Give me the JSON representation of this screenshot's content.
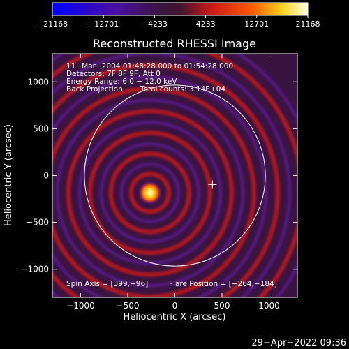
{
  "chart_data": {
    "type": "heatmap",
    "title": "Reconstructed RHESSI Image",
    "xlabel": "Heliocentric X (arcsec)",
    "ylabel": "Heliocentric Y (arcsec)",
    "xlim": [
      -1300,
      1300
    ],
    "ylim": [
      -1300,
      1300
    ],
    "xticks": [
      -1000,
      -500,
      0,
      500,
      1000
    ],
    "yticks": [
      -1000,
      -500,
      0,
      500,
      1000
    ],
    "xtick_labels": [
      "−1000",
      "−500",
      "0",
      "500",
      "1000"
    ],
    "ytick_labels": [
      "−1000",
      "−500",
      "0",
      "500",
      "1000"
    ],
    "colorbar": {
      "ticks": [
        -21168,
        -12701,
        -4233,
        4233,
        12701,
        21168
      ],
      "tick_labels": [
        "−21168",
        "−12701",
        "−4233",
        "4233",
        "12701",
        "21168"
      ],
      "range": [
        -21168,
        21168
      ]
    },
    "annotations": {
      "time": "11−Mar−2004 01:48:28.000 to 01:54:28.000",
      "detectors": "Detectors: 7F 8F 9F, Att 0",
      "energy": "Energy Range: 6.0 − 12.0 keV",
      "method": "Back Projection",
      "counts": "Total counts: 3.14E+04",
      "spin_axis": "Spin Axis = [399,−96]",
      "flare_position": "Flare Position = [−264,−184]"
    },
    "spin_axis": [
      399,
      -96
    ],
    "flare_position": [
      -264,
      -184
    ],
    "solar_disk": {
      "center": [
        0,
        0
      ],
      "radius": 960
    },
    "source_peak": 21168
  },
  "footer": {
    "timestamp": "29−Apr−2022 09:36"
  }
}
